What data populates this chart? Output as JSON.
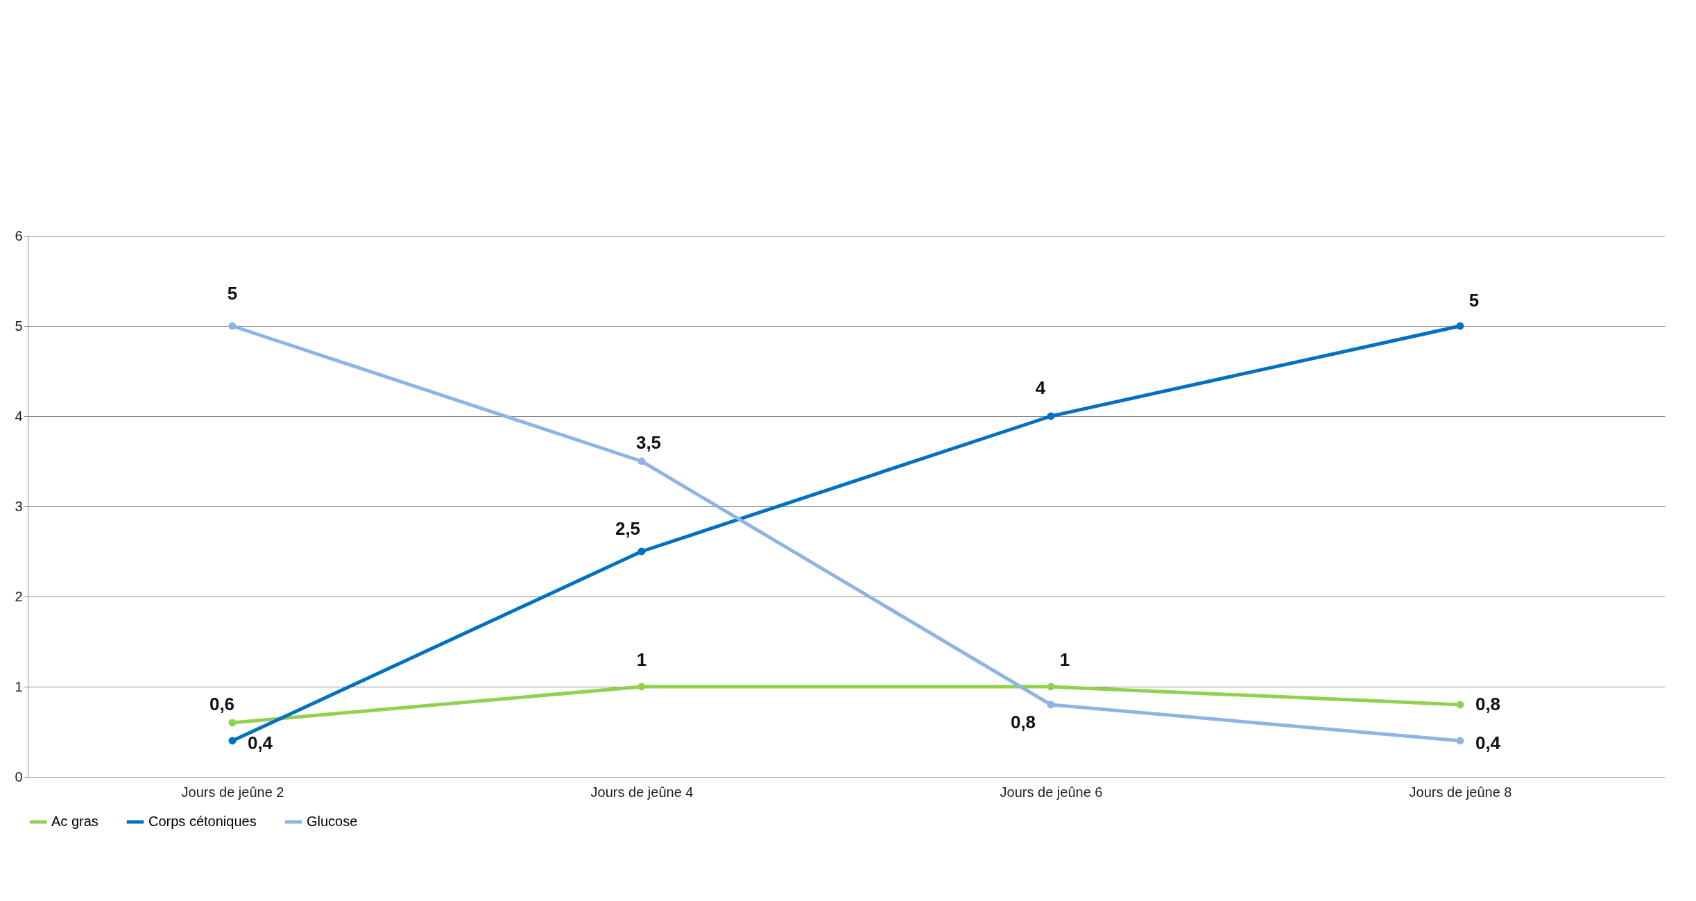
{
  "chart_data": {
    "type": "line",
    "categories": [
      "Jours de jeûne 2",
      "Jours de jeûne 4",
      "Jours de jeûne 6",
      "Jours de jeûne 8"
    ],
    "series": [
      {
        "name": "Ac gras",
        "color": "#92d050",
        "values": [
          0.6,
          1,
          1,
          0.8
        ],
        "value_labels": [
          "0,6",
          "1",
          "1",
          "0,8"
        ]
      },
      {
        "name": "Corps cétoniques",
        "color": "#0070c0",
        "values": [
          0.4,
          2.5,
          4,
          5
        ],
        "value_labels": [
          "0,4",
          "2,5",
          "4",
          "5"
        ]
      },
      {
        "name": "Glucose",
        "color": "#8eb4e3",
        "values": [
          5,
          3.5,
          0.8,
          0.4
        ],
        "value_labels": [
          "5",
          "3,5",
          "0,8",
          "0,4"
        ]
      }
    ],
    "ylim": [
      0,
      6
    ],
    "yticks": [
      0,
      1,
      2,
      3,
      4,
      5,
      6
    ],
    "grid": "y",
    "legend": "bottom",
    "marker": "circle",
    "line_style": "solid"
  }
}
